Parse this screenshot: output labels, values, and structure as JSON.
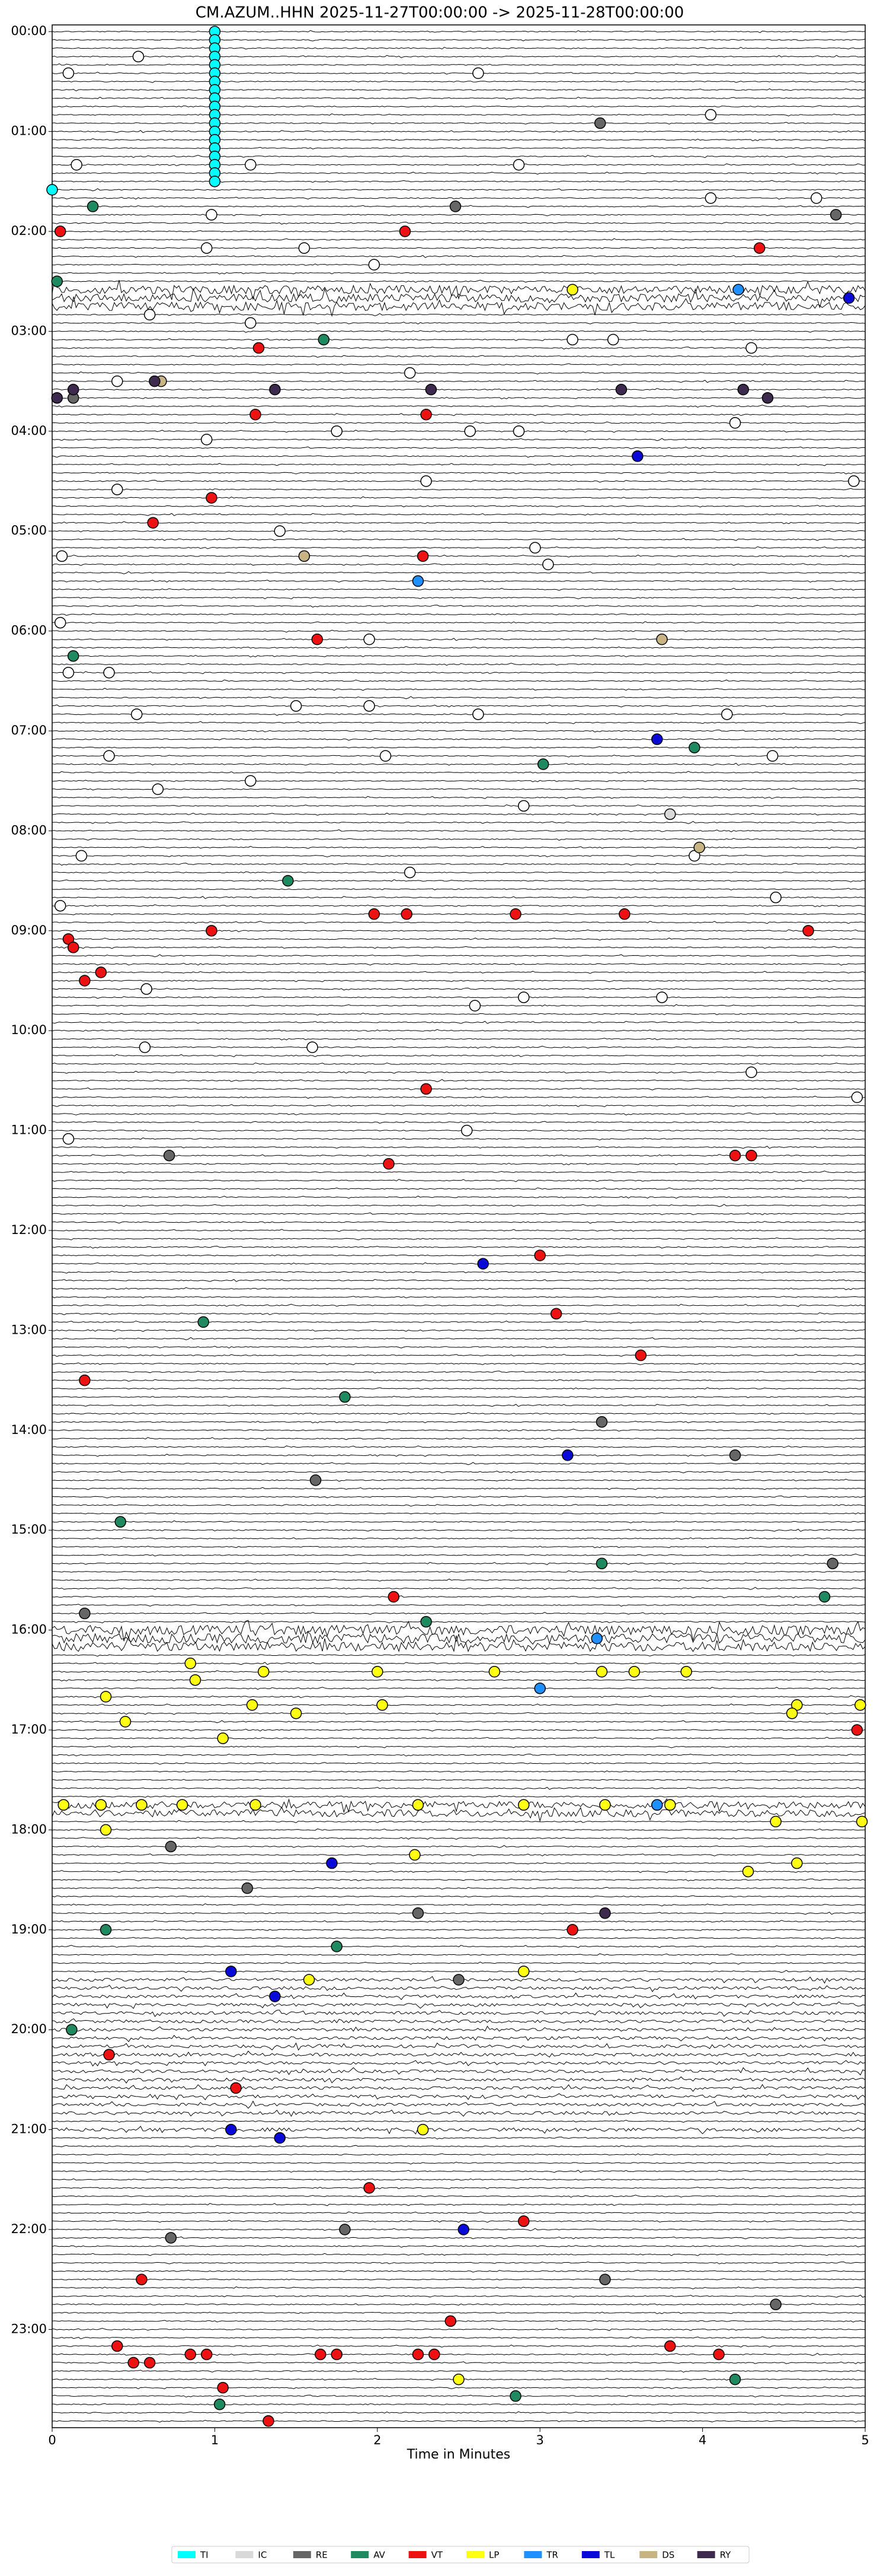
{
  "chart_data": {
    "type": "helicorder",
    "title": "CM.AZUM..HHN  2025-11-27T00:00:00 -> 2025-11-28T00:00:00",
    "x_label": "Time in Minutes",
    "xlim": [
      0,
      5
    ],
    "xticks": [
      0,
      1,
      2,
      3,
      4,
      5
    ],
    "ylim": [
      -4,
      1439
    ],
    "line_minutes": 5,
    "yticks": [
      {
        "value": 0,
        "label": "00:00"
      },
      {
        "value": 60,
        "label": "01:00"
      },
      {
        "value": 120,
        "label": "02:00"
      },
      {
        "value": 180,
        "label": "03:00"
      },
      {
        "value": 240,
        "label": "04:00"
      },
      {
        "value": 300,
        "label": "05:00"
      },
      {
        "value": 360,
        "label": "06:00"
      },
      {
        "value": 420,
        "label": "07:00"
      },
      {
        "value": 480,
        "label": "08:00"
      },
      {
        "value": 540,
        "label": "09:00"
      },
      {
        "value": 600,
        "label": "10:00"
      },
      {
        "value": 660,
        "label": "11:00"
      },
      {
        "value": 720,
        "label": "12:00"
      },
      {
        "value": 780,
        "label": "13:00"
      },
      {
        "value": 840,
        "label": "14:00"
      },
      {
        "value": 900,
        "label": "15:00"
      },
      {
        "value": 960,
        "label": "16:00"
      },
      {
        "value": 1020,
        "label": "17:00"
      },
      {
        "value": 1080,
        "label": "18:00"
      },
      {
        "value": 1140,
        "label": "19:00"
      },
      {
        "value": 1200,
        "label": "20:00"
      },
      {
        "value": 1260,
        "label": "21:00"
      },
      {
        "value": 1320,
        "label": "22:00"
      },
      {
        "value": 1380,
        "label": "23:00"
      }
    ],
    "series": [
      {
        "color": "#ffffff",
        "x": [
          0.53,
          0.1,
          2.62,
          4.05,
          1.22,
          0.15,
          2.87,
          4.05,
          4.7,
          0.98,
          0.95,
          1.55,
          1.98,
          0.6,
          1.22,
          3.2,
          3.45,
          4.3,
          0.4,
          2.2,
          0.95,
          1.75,
          2.57,
          2.87,
          4.2,
          0.4,
          4.93,
          2.3,
          1.4,
          2.97,
          3.05,
          0.06,
          0.05,
          1.95,
          0.35,
          0.1,
          0.52,
          1.5,
          1.95,
          2.62,
          4.15,
          0.35,
          2.05,
          4.43,
          0.65,
          1.22,
          2.9,
          3.95,
          0.18,
          2.2,
          0.05,
          4.45,
          0.58,
          2.9,
          3.75,
          2.6,
          0.57,
          1.6,
          4.3,
          0.1,
          4.95,
          2.55
        ],
        "values": [
          15,
          25,
          25,
          50,
          80,
          80,
          80,
          100,
          100,
          110,
          130,
          130,
          140,
          170,
          175,
          185,
          185,
          190,
          210,
          205,
          245,
          240,
          240,
          240,
          235,
          275,
          270,
          270,
          300,
          310,
          320,
          315,
          355,
          365,
          385,
          385,
          410,
          405,
          405,
          410,
          410,
          435,
          435,
          435,
          455,
          450,
          465,
          495,
          495,
          505,
          525,
          520,
          575,
          580,
          580,
          585,
          610,
          610,
          625,
          665,
          640,
          660
        ]
      },
      {
        "name": "TI",
        "color": "#00ffff",
        "x": [
          1,
          1,
          1,
          1,
          1,
          1,
          1,
          1,
          1,
          1,
          1,
          1,
          1,
          1,
          1,
          1,
          1,
          1,
          1,
          0
        ],
        "values": [
          0,
          5,
          10,
          15,
          20,
          25,
          30,
          35,
          40,
          45,
          50,
          55,
          60,
          65,
          70,
          75,
          80,
          85,
          90,
          95
        ]
      },
      {
        "name": "IC",
        "color": "#d9d9d9",
        "x": [
          3.8
        ],
        "values": [
          470
        ]
      },
      {
        "name": "RE",
        "color": "#666666",
        "x": [
          3.37,
          4.82,
          2.48,
          0.13,
          0.13,
          0.2,
          0.72,
          1.62,
          3.38,
          4.2,
          4.8,
          1.2,
          2.25,
          2.5,
          3.4,
          4.45,
          1.8,
          0.73,
          0.73
        ],
        "values": [
          55,
          110,
          105,
          220,
          550,
          950,
          675,
          870,
          835,
          855,
          920,
          1115,
          1130,
          1170,
          1350,
          1365,
          1320,
          1325,
          1090
        ]
      },
      {
        "name": "AV",
        "color": "#1f8a5f",
        "x": [
          0.25,
          0.03,
          1.67,
          3.02,
          3.95,
          1.45,
          0.93,
          0.13,
          1.8,
          0.42,
          3.38,
          4.75,
          2.3,
          1.75,
          0.33,
          0.12,
          2.85,
          1.03,
          4.2
        ],
        "values": [
          105,
          150,
          185,
          440,
          430,
          510,
          775,
          375,
          820,
          895,
          920,
          940,
          955,
          1150,
          1140,
          1200,
          1420,
          1425,
          1410
        ]
      },
      {
        "name": "VT",
        "color": "#ee1111",
        "x": [
          0.05,
          2.17,
          4.35,
          1.27,
          1.25,
          2.3,
          0.62,
          0.98,
          2.28,
          1.63,
          0.98,
          1.98,
          2.18,
          2.85,
          3.52,
          4.65,
          0.1,
          0.13,
          0.2,
          0.3,
          2.3,
          2.07,
          4.2,
          4.3,
          3.0,
          3.1,
          3.62,
          0.2,
          2.1,
          3.2,
          4.95,
          0.35,
          1.13,
          1.95,
          2.9,
          0.55,
          2.45,
          0.4,
          0.5,
          0.6,
          0.85,
          0.95,
          1.65,
          1.75,
          2.25,
          2.35,
          3.8,
          4.1,
          1.05,
          1.33
        ],
        "values": [
          120,
          120,
          130,
          190,
          230,
          230,
          295,
          280,
          315,
          365,
          540,
          530,
          530,
          530,
          530,
          540,
          545,
          550,
          570,
          565,
          635,
          680,
          675,
          675,
          735,
          770,
          795,
          810,
          940,
          1140,
          1020,
          1215,
          1235,
          1295,
          1315,
          1350,
          1375,
          1390,
          1400,
          1400,
          1395,
          1395,
          1395,
          1395,
          1395,
          1395,
          1390,
          1395,
          1415,
          1435
        ]
      },
      {
        "name": "LP",
        "color": "#ffff11",
        "x": [
          3.2,
          0.85,
          0.88,
          1.3,
          2.0,
          2.72,
          3.38,
          3.58,
          3.9,
          0.33,
          1.5,
          1.23,
          2.03,
          0.45,
          1.05,
          4.58,
          4.97,
          0.07,
          0.3,
          0.55,
          0.8,
          1.25,
          2.25,
          2.9,
          3.4,
          3.8,
          0.33,
          4.45,
          4.98,
          2.23,
          4.28,
          4.58,
          2.9,
          1.58,
          2.28,
          2.5,
          4.55
        ],
        "values": [
          155,
          980,
          990,
          985,
          985,
          985,
          985,
          985,
          985,
          1000,
          1010,
          1005,
          1005,
          1015,
          1025,
          1005,
          1005,
          1065,
          1065,
          1065,
          1065,
          1065,
          1065,
          1065,
          1065,
          1065,
          1080,
          1075,
          1075,
          1095,
          1105,
          1100,
          1165,
          1170,
          1260,
          1410,
          1010
        ]
      },
      {
        "name": "TR",
        "color": "#1e90ff",
        "x": [
          4.22,
          2.25,
          3.0,
          3.72,
          3.35
        ],
        "values": [
          155,
          330,
          995,
          1065,
          965
        ]
      },
      {
        "name": "TL",
        "color": "#0a0ad8",
        "x": [
          4.9,
          3.6,
          3.72,
          2.65,
          3.17,
          1.72,
          1.1,
          1.37,
          1.1,
          1.4,
          2.53
        ],
        "values": [
          160,
          255,
          425,
          740,
          855,
          1100,
          1165,
          1180,
          1260,
          1265,
          1320
        ]
      },
      {
        "name": "DS",
        "color": "#c8b482",
        "x": [
          1.55,
          3.98,
          3.75,
          0.67
        ],
        "values": [
          315,
          490,
          365,
          210
        ]
      },
      {
        "name": "RY",
        "color": "#3f2a4f",
        "x": [
          1.37,
          2.33,
          0.13,
          3.5,
          4.25,
          4.4,
          0.03,
          0.63,
          3.4
        ],
        "values": [
          215,
          215,
          215,
          215,
          215,
          220,
          220,
          210,
          1130
        ]
      }
    ]
  }
}
